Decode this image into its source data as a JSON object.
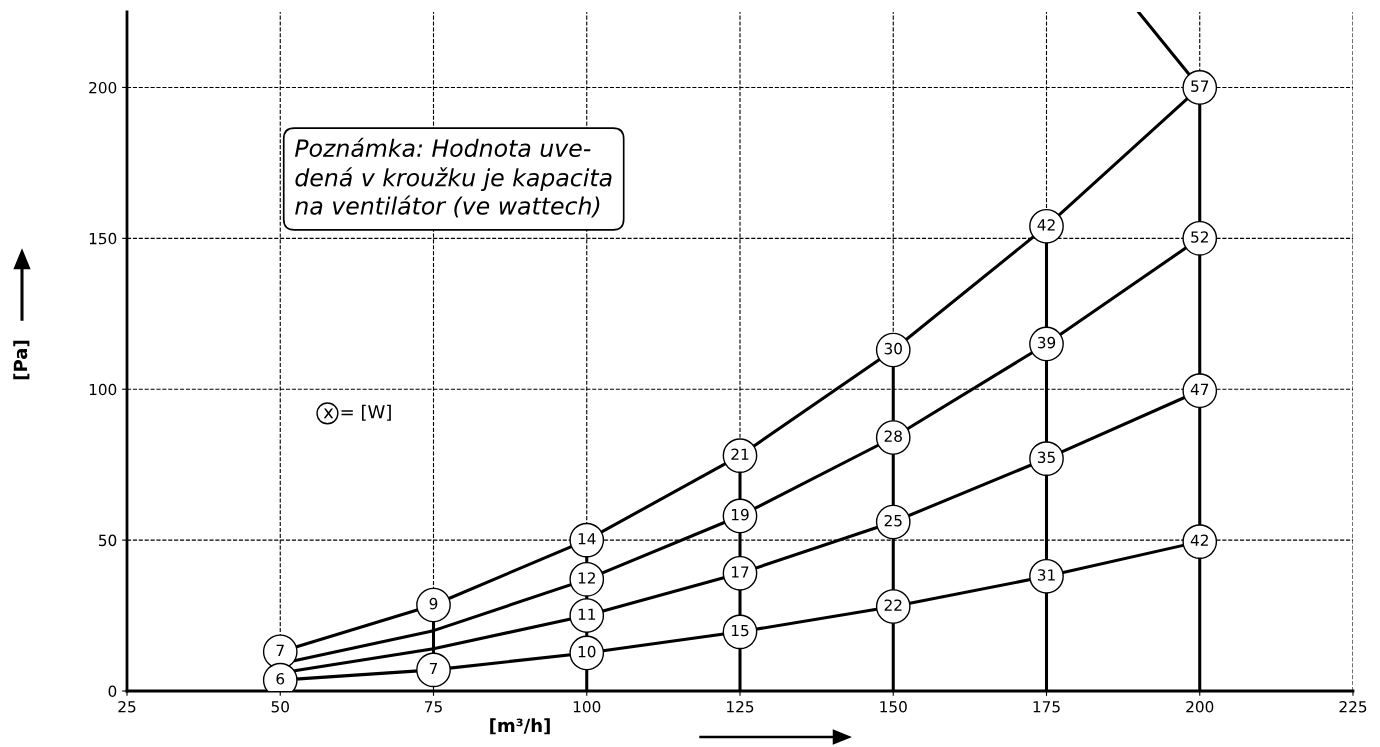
{
  "chart_data": {
    "type": "line",
    "xlabel": "[m³/h]",
    "ylabel": "[Pa]",
    "x": [
      50,
      75,
      100,
      125,
      150,
      175,
      200
    ],
    "xlim": [
      25,
      225
    ],
    "xticks": [
      25,
      50,
      75,
      100,
      125,
      150,
      175,
      200,
      225
    ],
    "ylim": [
      0,
      225
    ],
    "yticks": [
      0,
      50,
      100,
      150,
      200
    ],
    "grid": true,
    "line_style": "solid",
    "marker": "circle",
    "series": [
      {
        "color": "#000000",
        "values": [
          13,
          28.5,
          50,
          78,
          113,
          154,
          200
        ]
      },
      {
        "color": "#000000",
        "values": [
          9,
          20,
          37,
          58,
          84,
          115,
          150
        ]
      },
      {
        "color": "#000000",
        "values": [
          6,
          14,
          25,
          39,
          56,
          77,
          99.5
        ]
      },
      {
        "color": "#000000",
        "values": [
          3.6,
          7,
          12.6,
          19.6,
          28,
          38,
          49.5
        ]
      },
      {
        "color": "#000000",
        "marker": "none",
        "x": [
          75,
          75
        ],
        "values": [
          7,
          28.5
        ]
      },
      {
        "color": "#000000",
        "marker": "none",
        "x": [
          100,
          100
        ],
        "values": [
          0,
          50
        ]
      },
      {
        "color": "#000000",
        "marker": "none",
        "x": [
          125,
          125
        ],
        "values": [
          0,
          78
        ]
      },
      {
        "color": "#000000",
        "marker": "none",
        "x": [
          150,
          150
        ],
        "values": [
          0,
          113
        ]
      },
      {
        "color": "#000000",
        "marker": "none",
        "x": [
          175,
          175
        ],
        "values": [
          0,
          154
        ]
      },
      {
        "color": "#000000",
        "marker": "none",
        "x": [
          200,
          200
        ],
        "values": [
          0,
          200
        ]
      },
      {
        "color": "#000000",
        "marker": "none",
        "x": [
          200,
          190
        ],
        "values": [
          200,
          225
        ]
      }
    ],
    "annotations": [
      "Poznámka: Hodnota uve-\ndená v kroužku je kapacita\nna ventilátor (ve wattech)",
      "x = [W]",
      {
        "text": "7",
        "x": 50,
        "y": 13
      },
      {
        "text": "9",
        "x": 75,
        "y": 28.5
      },
      {
        "text": "14",
        "x": 100,
        "y": 50
      },
      {
        "text": "21",
        "x": 125,
        "y": 78
      },
      {
        "text": "30",
        "x": 150,
        "y": 113
      },
      {
        "text": "42",
        "x": 175,
        "y": 154
      },
      {
        "text": "57",
        "x": 200,
        "y": 200
      },
      {
        "text": "12",
        "x": 100,
        "y": 37
      },
      {
        "text": "19",
        "x": 125,
        "y": 58
      },
      {
        "text": "28",
        "x": 150,
        "y": 84
      },
      {
        "text": "39",
        "x": 175,
        "y": 115
      },
      {
        "text": "52",
        "x": 200,
        "y": 150
      },
      {
        "text": "11",
        "x": 100,
        "y": 25
      },
      {
        "text": "17",
        "x": 125,
        "y": 39
      },
      {
        "text": "25",
        "x": 150,
        "y": 56
      },
      {
        "text": "35",
        "x": 175,
        "y": 77
      },
      {
        "text": "47",
        "x": 200,
        "y": 99.5
      },
      {
        "text": "6",
        "x": 50,
        "y": 3.6
      },
      {
        "text": "7",
        "x": 75,
        "y": 7
      },
      {
        "text": "10",
        "x": 100,
        "y": 12.6
      },
      {
        "text": "15",
        "x": 125,
        "y": 19.6
      },
      {
        "text": "22",
        "x": 150,
        "y": 28
      },
      {
        "text": "31",
        "x": 175,
        "y": 38
      },
      {
        "text": "42",
        "x": 200,
        "y": 49.5
      }
    ]
  }
}
